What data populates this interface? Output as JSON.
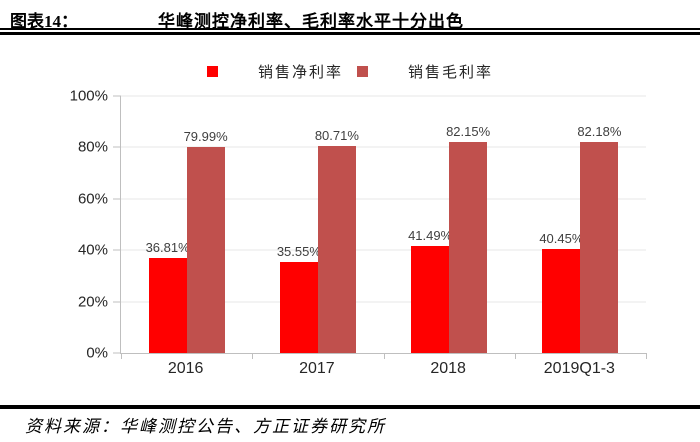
{
  "header": {
    "figure_label": "图表14：",
    "figure_title": "华峰测控净利率、毛利率水平十分出色"
  },
  "chart_data": {
    "type": "bar",
    "title": "华峰测控净利率、毛利率水平十分出色",
    "categories": [
      "2016",
      "2017",
      "2018",
      "2019Q1-3"
    ],
    "series": [
      {
        "name": "销售净利率",
        "color": "#FF0000",
        "values": [
          36.81,
          35.55,
          41.49,
          40.45
        ]
      },
      {
        "name": "销售毛利率",
        "color": "#C0504D",
        "values": [
          79.99,
          80.71,
          82.15,
          82.18
        ]
      }
    ],
    "value_labels": [
      [
        "36.81%",
        "35.55%",
        "41.49%",
        "40.45%"
      ],
      [
        "79.99%",
        "80.71%",
        "82.15%",
        "82.18%"
      ]
    ],
    "ylim": [
      0,
      100
    ],
    "yticks": [
      0,
      20,
      40,
      60,
      80,
      100
    ],
    "ytick_labels": [
      "0%",
      "20%",
      "40%",
      "60%",
      "80%",
      "100%"
    ],
    "grid": true,
    "legend_position": "top",
    "colors": {
      "grid": "#E7E7E7",
      "axis": "#BFBFBF",
      "value_label": "#3F3F3F",
      "tick_label": "#262626"
    }
  },
  "footer": {
    "source": "资料来源：华峰测控公告、方正证券研究所"
  }
}
